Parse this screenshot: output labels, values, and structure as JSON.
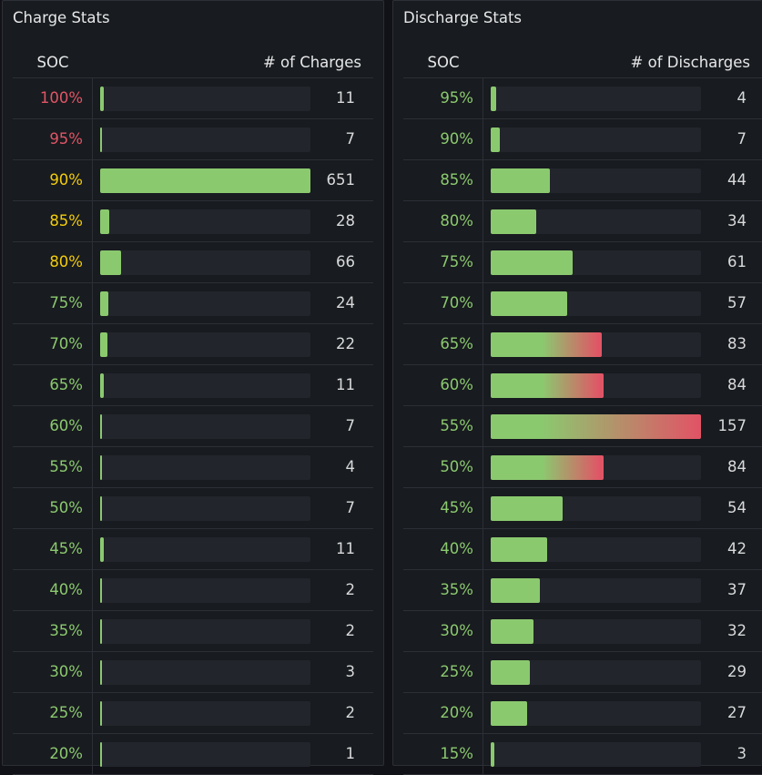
{
  "colors": {
    "green": "#8bc96f",
    "yellow": "#f2cc0c",
    "red": "#e05566",
    "track": "#22252b"
  },
  "charge": {
    "title": "Charge Stats",
    "col_soc": "SOC",
    "col_count": "# of Charges",
    "max": 651,
    "rows": [
      {
        "soc": "100%",
        "count": "11",
        "value": 11,
        "tone": "red"
      },
      {
        "soc": "95%",
        "count": "7",
        "value": 7,
        "tone": "red"
      },
      {
        "soc": "90%",
        "count": "651",
        "value": 651,
        "tone": "yellow"
      },
      {
        "soc": "85%",
        "count": "28",
        "value": 28,
        "tone": "yellow"
      },
      {
        "soc": "80%",
        "count": "66",
        "value": 66,
        "tone": "yellow"
      },
      {
        "soc": "75%",
        "count": "24",
        "value": 24,
        "tone": "green"
      },
      {
        "soc": "70%",
        "count": "22",
        "value": 22,
        "tone": "green"
      },
      {
        "soc": "65%",
        "count": "11",
        "value": 11,
        "tone": "green"
      },
      {
        "soc": "60%",
        "count": "7",
        "value": 7,
        "tone": "green"
      },
      {
        "soc": "55%",
        "count": "4",
        "value": 4,
        "tone": "green"
      },
      {
        "soc": "50%",
        "count": "7",
        "value": 7,
        "tone": "green"
      },
      {
        "soc": "45%",
        "count": "11",
        "value": 11,
        "tone": "green"
      },
      {
        "soc": "40%",
        "count": "2",
        "value": 2,
        "tone": "green"
      },
      {
        "soc": "35%",
        "count": "2",
        "value": 2,
        "tone": "green"
      },
      {
        "soc": "30%",
        "count": "3",
        "value": 3,
        "tone": "green"
      },
      {
        "soc": "25%",
        "count": "2",
        "value": 2,
        "tone": "green"
      },
      {
        "soc": "20%",
        "count": "1",
        "value": 1,
        "tone": "green"
      }
    ]
  },
  "discharge": {
    "title": "Discharge Stats",
    "col_soc": "SOC",
    "col_count": "# of Discharges",
    "max": 157,
    "rows": [
      {
        "soc": "95%",
        "count": "4",
        "value": 4,
        "tone": "green"
      },
      {
        "soc": "90%",
        "count": "7",
        "value": 7,
        "tone": "green"
      },
      {
        "soc": "85%",
        "count": "44",
        "value": 44,
        "tone": "green"
      },
      {
        "soc": "80%",
        "count": "34",
        "value": 34,
        "tone": "green"
      },
      {
        "soc": "75%",
        "count": "61",
        "value": 61,
        "tone": "green"
      },
      {
        "soc": "70%",
        "count": "57",
        "value": 57,
        "tone": "green"
      },
      {
        "soc": "65%",
        "count": "83",
        "value": 83,
        "tone": "green"
      },
      {
        "soc": "60%",
        "count": "84",
        "value": 84,
        "tone": "green"
      },
      {
        "soc": "55%",
        "count": "157",
        "value": 157,
        "tone": "green"
      },
      {
        "soc": "50%",
        "count": "84",
        "value": 84,
        "tone": "green"
      },
      {
        "soc": "45%",
        "count": "54",
        "value": 54,
        "tone": "green"
      },
      {
        "soc": "40%",
        "count": "42",
        "value": 42,
        "tone": "green"
      },
      {
        "soc": "35%",
        "count": "37",
        "value": 37,
        "tone": "green"
      },
      {
        "soc": "30%",
        "count": "32",
        "value": 32,
        "tone": "green"
      },
      {
        "soc": "25%",
        "count": "29",
        "value": 29,
        "tone": "green"
      },
      {
        "soc": "20%",
        "count": "27",
        "value": 27,
        "tone": "green"
      },
      {
        "soc": "15%",
        "count": "3",
        "value": 3,
        "tone": "green"
      }
    ]
  }
}
